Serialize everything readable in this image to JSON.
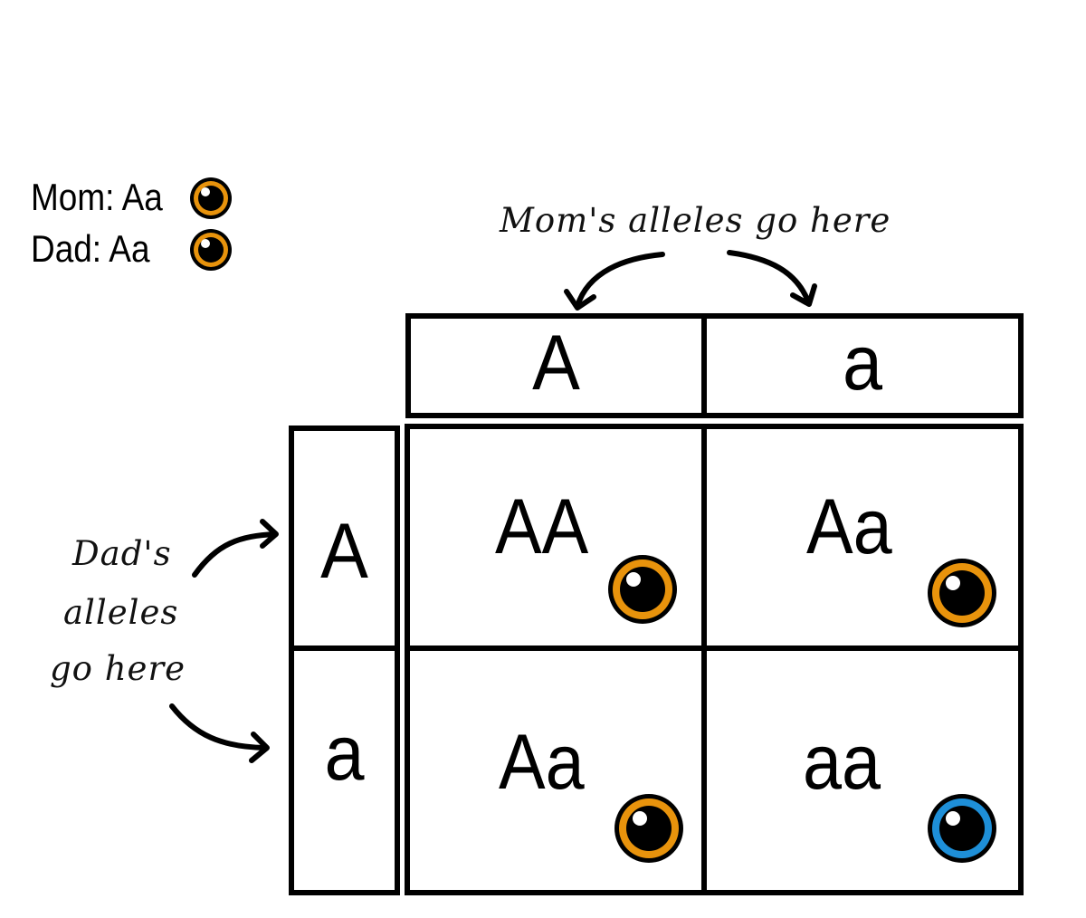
{
  "parents": {
    "mom": {
      "label": "Mom: Aa",
      "eye": "brown-eye-icon",
      "eye_color": "#e8930c"
    },
    "dad": {
      "label": "Dad: Aa",
      "eye": "brown-eye-icon",
      "eye_color": "#e8930c"
    }
  },
  "annotations": {
    "mom_note": "Mom's alleles go here",
    "dad_note_line1": "Dad's",
    "dad_note_line2": "alleles",
    "dad_note_line3": "go here"
  },
  "mom_alleles": [
    "A",
    "a"
  ],
  "dad_alleles": [
    "A",
    "a"
  ],
  "offspring": [
    {
      "genotype": "AA",
      "eye": "brown-eye-icon",
      "eye_color": "#e8930c"
    },
    {
      "genotype": "Aa",
      "eye": "brown-eye-icon",
      "eye_color": "#e8930c"
    },
    {
      "genotype": "Aa",
      "eye": "brown-eye-icon",
      "eye_color": "#e8930c"
    },
    {
      "genotype": "aa",
      "eye": "blue-eye-icon",
      "eye_color": "#1e8fd8"
    }
  ],
  "colors": {
    "outline": "#000000",
    "brown_iris": "#e8930c",
    "blue_iris": "#1e8fd8"
  }
}
